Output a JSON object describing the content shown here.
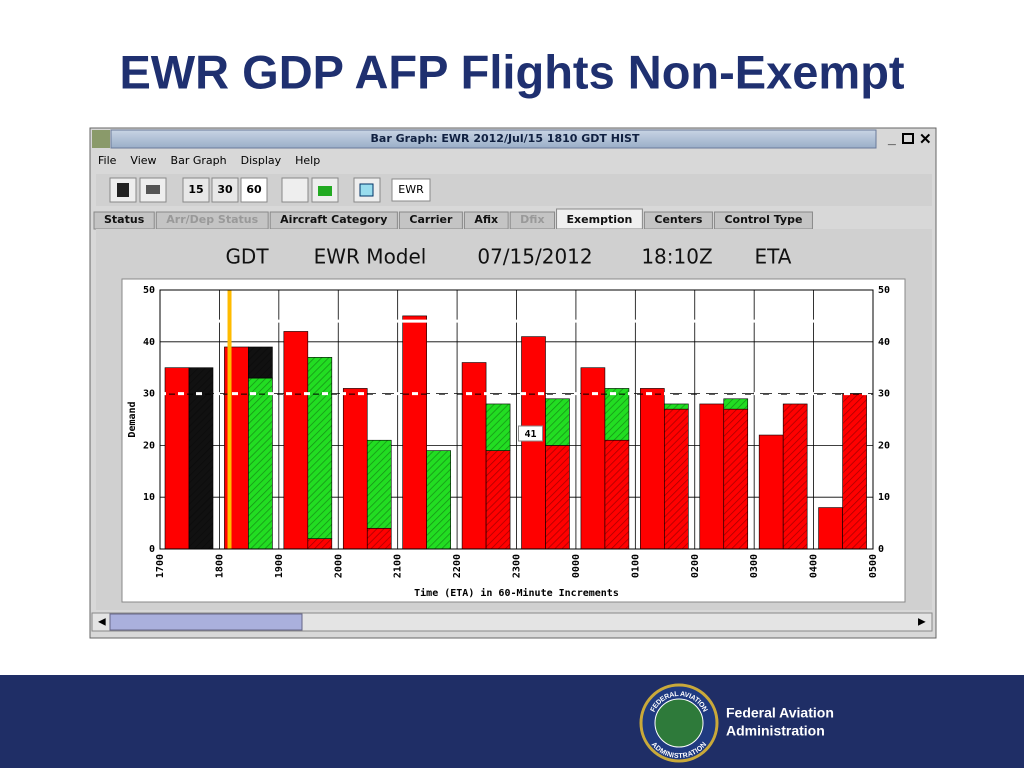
{
  "slide": {
    "title": "EWR GDP AFP Flights Non-Exempt",
    "footer_text": [
      "Federal Aviation",
      "Administration"
    ],
    "logo_top": "FEDERAL AVIATION",
    "logo_bottom": "ADMINISTRATION"
  },
  "window": {
    "title": "Bar Graph: EWR 2012/Jul/15 1810 GDT HIST",
    "menus": [
      "File",
      "View",
      "Bar Graph",
      "Display",
      "Help"
    ],
    "buttons": [
      "15",
      "30",
      "60"
    ],
    "airport": "EWR",
    "tabs": [
      {
        "label": "Status",
        "disabled": false
      },
      {
        "label": "Arr/Dep Status",
        "disabled": true
      },
      {
        "label": "Aircraft Category",
        "disabled": false
      },
      {
        "label": "Carrier",
        "disabled": false
      },
      {
        "label": "Afix",
        "disabled": false
      },
      {
        "label": "Dfix",
        "disabled": true
      },
      {
        "label": "Exemption",
        "disabled": false,
        "selected": true
      },
      {
        "label": "Centers",
        "disabled": false
      },
      {
        "label": "Control Type",
        "disabled": false
      }
    ],
    "heading": [
      "GDT",
      "EWR Model",
      "07/15/2012",
      "18:10Z",
      "ETA"
    ]
  },
  "chart_data": {
    "type": "bar",
    "y_label": "Demand",
    "x_label": "Time (ETA) in 60-Minute Increments",
    "x_tick_labels": [
      "1700",
      "1800",
      "1900",
      "2000",
      "2100",
      "2200",
      "2300",
      "0000",
      "0100",
      "0200",
      "0300",
      "0400",
      "0500"
    ],
    "ylim": [
      0,
      50
    ],
    "yticks": [
      0,
      10,
      20,
      30,
      40,
      50
    ],
    "grid": true,
    "left_series": {
      "color": "#ff0000",
      "values": [
        35,
        39,
        42,
        31,
        45,
        36,
        41,
        35,
        31,
        28,
        22,
        8
      ]
    },
    "stack_series": [
      {
        "color": "#ff0000",
        "hatch": true,
        "values": [
          0,
          0,
          2,
          4,
          0,
          19,
          20,
          21,
          27,
          27,
          28,
          30
        ]
      },
      {
        "color": "#22dd22",
        "hatch": true,
        "values": [
          0,
          33,
          35,
          17,
          19,
          9,
          9,
          10,
          1,
          2,
          0,
          0
        ]
      },
      {
        "color": "#111111",
        "hatch": true,
        "values": [
          35,
          6,
          0,
          0,
          0,
          0,
          0,
          0,
          0,
          0,
          0,
          0
        ]
      }
    ],
    "reference_lines": [
      {
        "value": 44,
        "dashed": false
      },
      {
        "value": 30,
        "dashed": true
      }
    ],
    "current_time_line": {
      "x": 1.17,
      "color": "#ffbb00"
    },
    "annotations": [
      "41"
    ]
  }
}
